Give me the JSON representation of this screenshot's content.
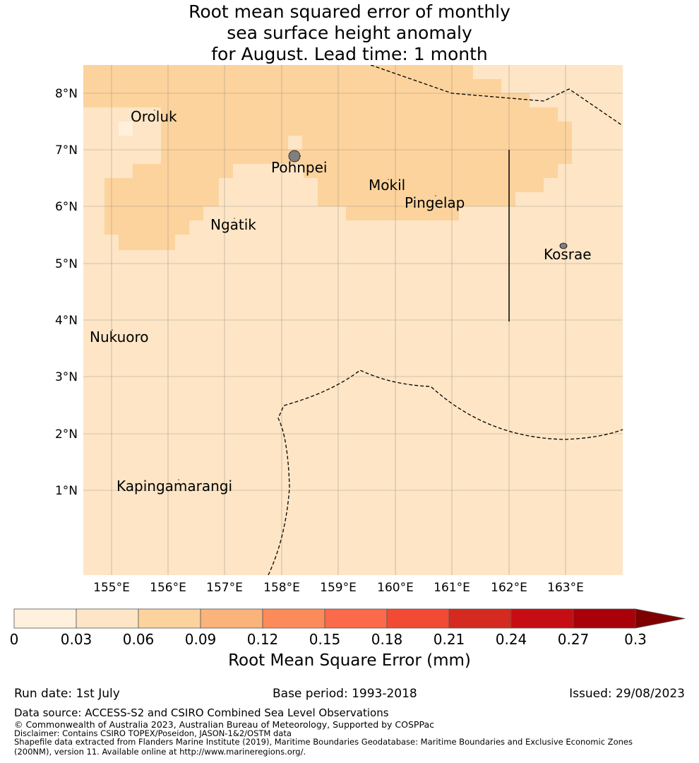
{
  "title": {
    "line1": "Root mean squared error of monthly",
    "line2": "sea surface height anomaly",
    "line3": "for August. Lead time: 1 month"
  },
  "map": {
    "lat_ticks": [
      "8°N",
      "7°N",
      "6°N",
      "5°N",
      "4°N",
      "3°N",
      "2°N",
      "1°N"
    ],
    "lon_ticks": [
      "155°E",
      "156°E",
      "157°E",
      "158°E",
      "159°E",
      "160°E",
      "161°E",
      "162°E",
      "163°E"
    ],
    "places": [
      "Oroluk",
      "Pohnpei",
      "Mokil",
      "Pingelap",
      "Ngatik",
      "Kosrae",
      "Nukuoro",
      "Kapingamarangi"
    ],
    "colors": {
      "low": "#fde5c5",
      "mid": "#fcd39d",
      "lowest": "#fff0dc",
      "land": "#7f7f7f"
    }
  },
  "colorbar": {
    "ticks": [
      "0",
      "0.03",
      "0.06",
      "0.09",
      "0.12",
      "0.15",
      "0.18",
      "0.21",
      "0.24",
      "0.27",
      "0.3"
    ],
    "colors": [
      "#fff1dd",
      "#fde5c5",
      "#fcd39d",
      "#fbb37c",
      "#fc8b59",
      "#fb6a4a",
      "#f34a36",
      "#d42a20",
      "#c70d14",
      "#a90009",
      "#7f0000"
    ],
    "label": "Root Mean Square Error (mm)"
  },
  "footer": {
    "run_date": "Run date: 1st July",
    "base_period": "Base period: 1993-2018",
    "issued": "Issued: 29/08/2023",
    "data_source": "Data source: ACCESS-S2 and CSIRO Combined Sea Level Observations",
    "copyright": "© Commonwealth of Australia 2023, Australian Bureau of Meteorology, Supported by COSPPac",
    "disclaimer": "Disclaimer: Contains CSIRO TOPEX/Poseidon, JASON-1&2/OSTM data",
    "shapefile1": "Shapefile data extracted from Flanders Marine Institute (2019), Maritime Boundaries Geodatabase: Maritime Boundaries and Exclusive Economic Zones",
    "shapefile2": "(200NM), version 11. Available online at http://www.marineregions.org/."
  }
}
